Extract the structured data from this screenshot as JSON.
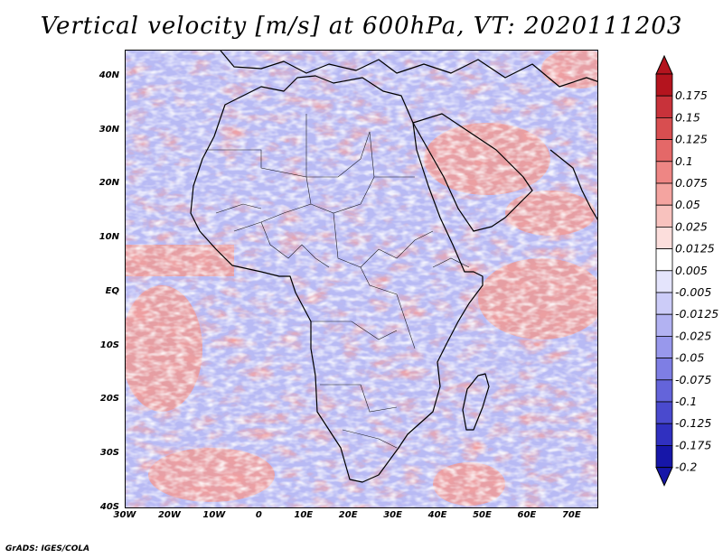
{
  "title": "Vertical velocity [m/s] at 600hPa, VT: 2020111203",
  "credit": "GrADS: IGES/COLA",
  "lat_labels": [
    "40N",
    "30N",
    "20N",
    "10N",
    "EQ",
    "10S",
    "20S",
    "30S",
    "40S"
  ],
  "lat_values": [
    40,
    30,
    20,
    10,
    0,
    -10,
    -20,
    -30,
    -40
  ],
  "lon_labels": [
    "30W",
    "20W",
    "10W",
    "0",
    "10E",
    "20E",
    "30E",
    "40E",
    "50E",
    "60E",
    "70E"
  ],
  "lon_values": [
    -30,
    -20,
    -10,
    0,
    10,
    20,
    30,
    40,
    50,
    60,
    70
  ],
  "map_extent": {
    "lon_min": -30,
    "lon_max": 76,
    "lat_min": -40,
    "lat_max": 45
  },
  "legend": {
    "labels": [
      "0.175",
      "0.15",
      "0.125",
      "0.1",
      "0.075",
      "0.05",
      "0.025",
      "0.0125",
      "0.005",
      "-0.005",
      "-0.0125",
      "-0.025",
      "-0.05",
      "-0.075",
      "-0.1",
      "-0.125",
      "-0.175",
      "-0.2"
    ],
    "colors": [
      "#b4141e",
      "#c8323a",
      "#d84e50",
      "#e46868",
      "#ee8684",
      "#f4a4a0",
      "#f8c2be",
      "#fcdedc",
      "#ffffff",
      "#e4e4fc",
      "#ccccf8",
      "#b2b2f2",
      "#9898ec",
      "#7e7ee4",
      "#6464da",
      "#4a4ace",
      "#3030c0",
      "#1616a8"
    ]
  },
  "colors": {
    "land_border": "#000000",
    "background_blue": "#b8baf4",
    "background_red": "#f4b8b4"
  }
}
